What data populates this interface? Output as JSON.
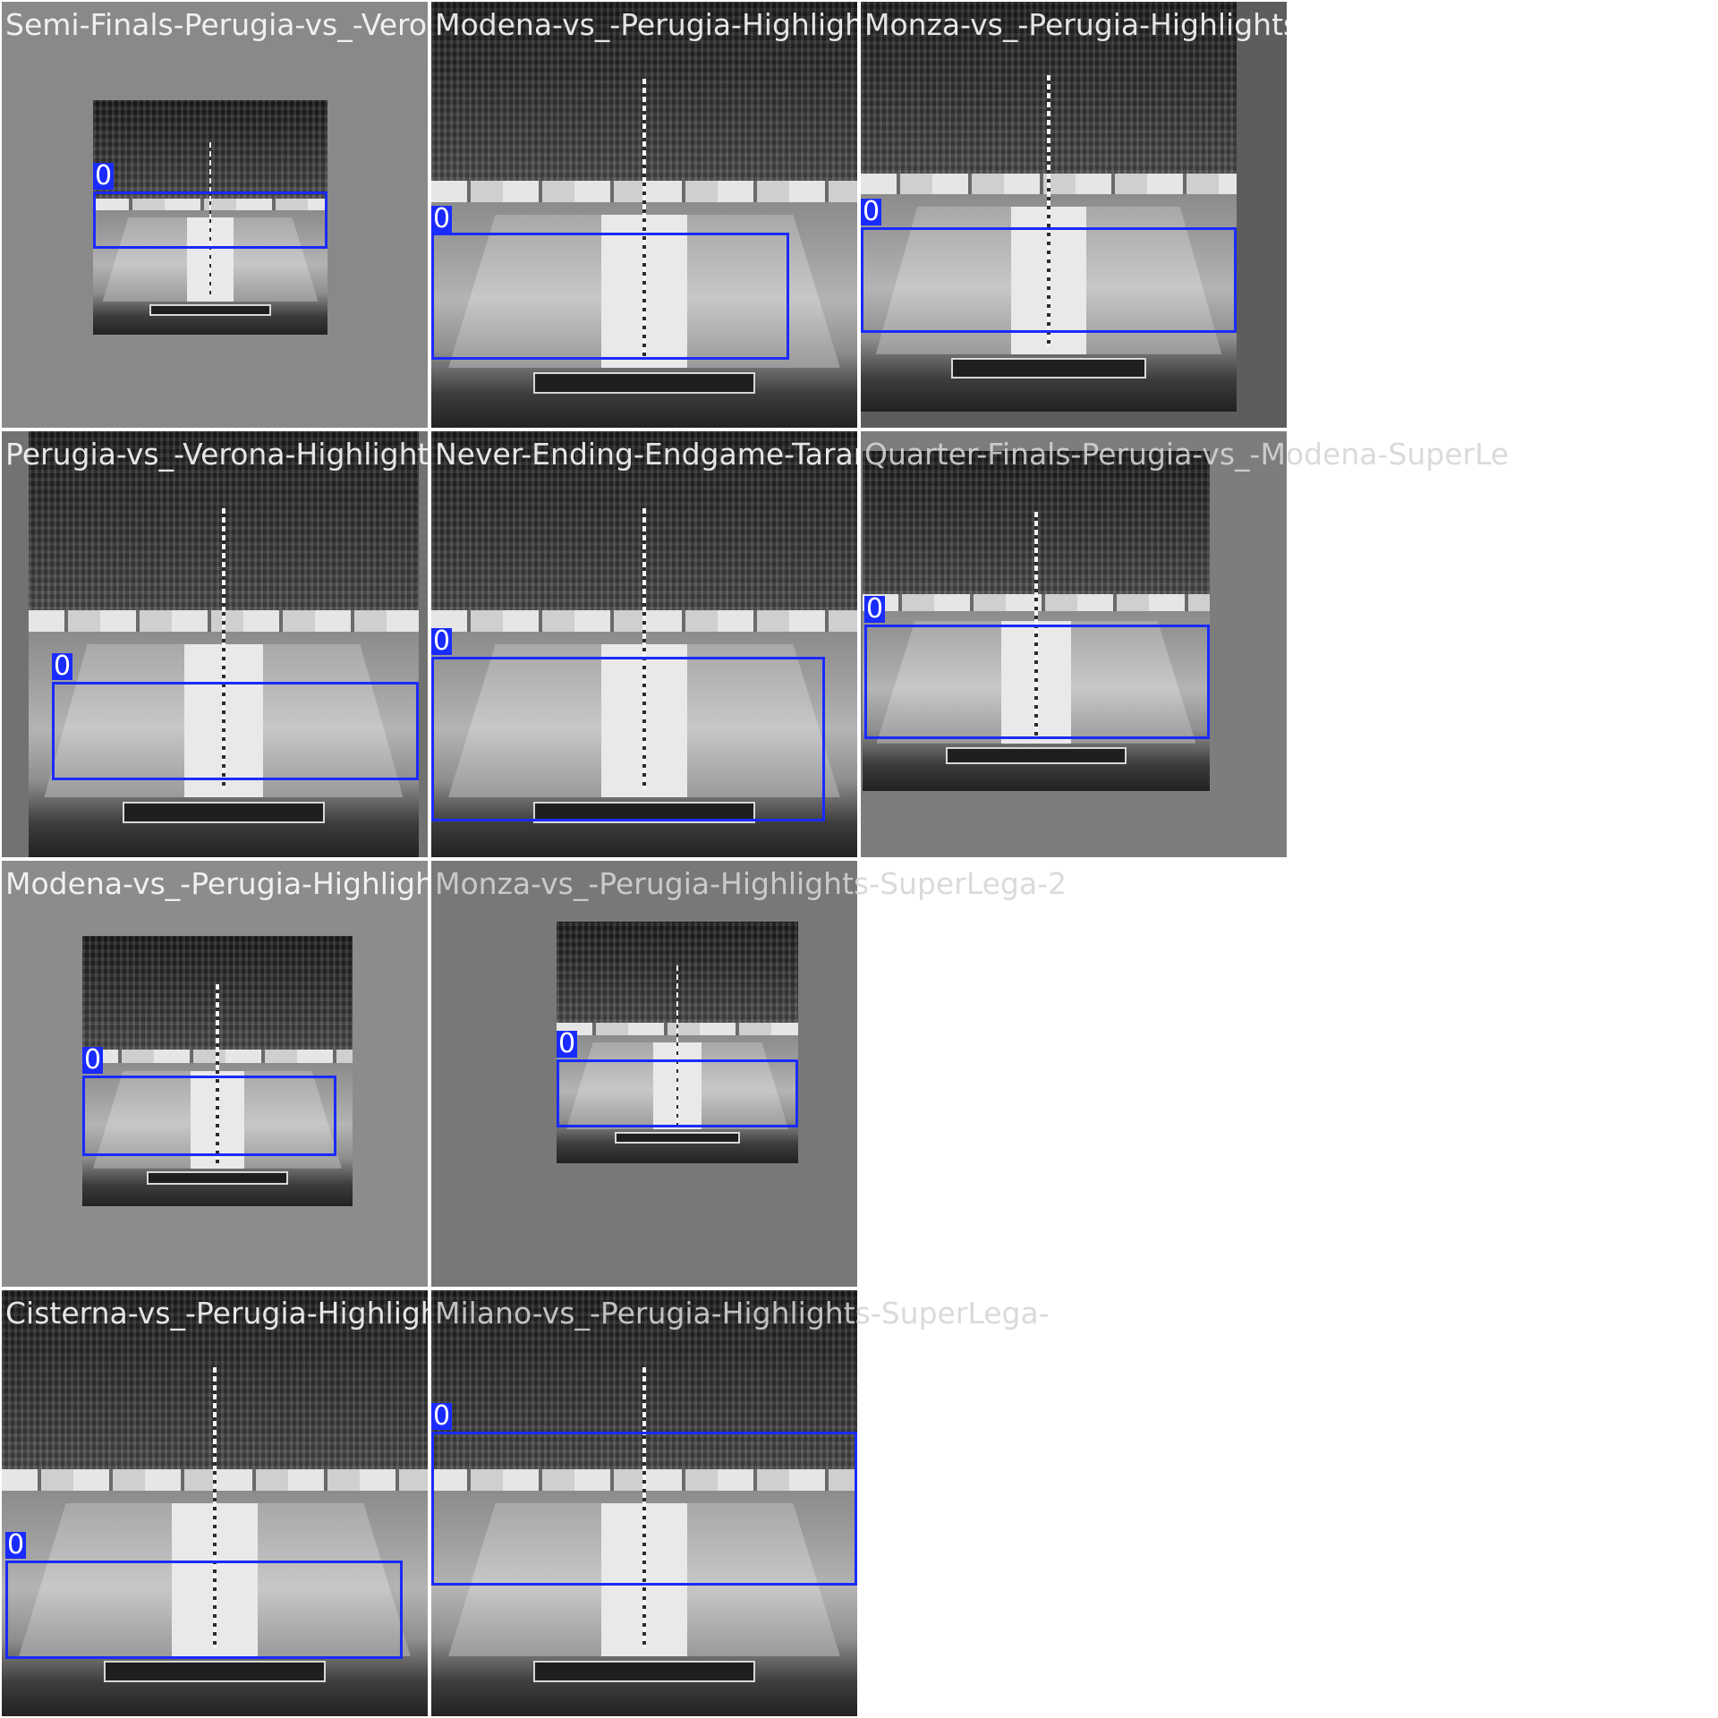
{
  "mosaic": {
    "background_tile": "#727272",
    "box_color": "#1a2bff",
    "tiles": [
      {
        "title": "Semi-Finals-Perugia-vs_-Verona-Highlights-SuperLega-",
        "class_label": "0"
      },
      {
        "title": "Modena-vs_-Perugia-Highlights-SuperLega-",
        "class_label": "0"
      },
      {
        "title": "Monza-vs_-Perugia-Highlights-SuperLega-",
        "class_label": "0"
      },
      {
        "title": "Perugia-vs_-Verona-Highlights-SuperLega-",
        "class_label": "0"
      },
      {
        "title": "Never-Ending-Endgame-Taranto-vs-Perugia-",
        "class_label": "0"
      },
      {
        "title": "Quarter-Finals-Perugia-vs_-Modena-SuperLe",
        "class_label": "0"
      },
      {
        "title": "Modena-vs_-Perugia-Highlights-SuperLega-",
        "class_label": "0"
      },
      {
        "title": "Monza-vs_-Perugia-Highlights-SuperLega-2",
        "class_label": "0"
      },
      {
        "title": "Cisterna-vs_-Perugia-Highlights-SuperLega-",
        "class_label": "0"
      },
      {
        "title": "Milano-vs_-Perugia-Highlights-SuperLega-",
        "class_label": "0"
      }
    ]
  }
}
